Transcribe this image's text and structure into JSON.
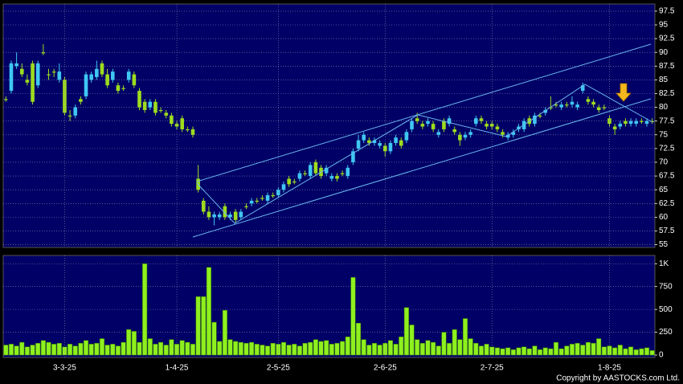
{
  "chart_data": [
    {
      "type": "candlestick",
      "up_color": "#3fc6f2",
      "down_color": "#9ddc1e",
      "ylim": [
        54.5,
        98.8
      ],
      "yticks": [
        55,
        57.5,
        60,
        62.5,
        65,
        67.5,
        70,
        72.5,
        75,
        77.5,
        80,
        82.5,
        85,
        87.5,
        90,
        92.5,
        95,
        97.5
      ],
      "grid": true,
      "open": [
        81.5,
        83,
        87.5,
        87,
        85,
        88,
        84,
        90,
        86,
        86.5,
        85,
        85,
        78.5,
        78.5,
        81.5,
        82,
        85,
        85.5,
        88,
        86,
        85,
        84,
        83.5,
        85,
        86,
        83,
        81,
        80,
        81,
        79.5,
        79,
        78.5,
        77,
        78,
        76,
        76,
        67,
        63,
        61,
        60,
        60,
        62,
        60,
        61,
        60,
        62,
        62.5,
        63,
        63.5,
        63,
        64,
        64,
        65,
        67,
        66.5,
        67,
        68,
        67.5,
        70,
        69,
        68,
        67,
        67.5,
        68,
        67.5,
        70,
        72.5,
        74,
        74,
        73.5,
        73,
        73,
        72,
        73.5,
        74,
        74,
        76,
        78,
        77,
        77,
        77,
        75,
        77.5,
        77,
        76,
        75,
        74.5,
        75,
        77,
        78,
        77,
        77,
        76.5,
        75.5,
        74.5,
        75,
        76,
        76,
        78,
        77,
        78.5,
        79,
        80,
        80.5,
        80,
        80.5,
        80.5,
        80,
        83,
        81.5,
        81,
        80,
        80,
        78,
        76.5,
        76.5,
        77.5,
        77,
        77,
        77.5,
        77,
        77.5
      ],
      "high": [
        82,
        88.5,
        90,
        88,
        86,
        88.5,
        88.5,
        91.5,
        87,
        87,
        88,
        85.5,
        79.5,
        80.5,
        82,
        86.5,
        86.5,
        88.5,
        88.5,
        87,
        87,
        84.5,
        84,
        87,
        86.5,
        83.5,
        81.5,
        81.5,
        81.5,
        80,
        79.5,
        79,
        77.5,
        78.5,
        76.5,
        76.5,
        69.5,
        63.5,
        62,
        61,
        61,
        62.5,
        61,
        61.5,
        61.5,
        62.5,
        63.5,
        63.5,
        64,
        64.5,
        64.5,
        65.5,
        66.5,
        67.5,
        67,
        68.5,
        68.5,
        70,
        70.5,
        69.5,
        69.5,
        68,
        68,
        68.5,
        69.5,
        72.5,
        75,
        75.5,
        74.5,
        74.5,
        74,
        73.5,
        74,
        75,
        74.5,
        76,
        78,
        79,
        77.5,
        78,
        77.5,
        76,
        78,
        78.5,
        76.5,
        75.5,
        75.5,
        76,
        78.5,
        78.5,
        77.5,
        77.5,
        77,
        76,
        75.5,
        76,
        77,
        78,
        78.5,
        79,
        79,
        80,
        82,
        81,
        81,
        81,
        82,
        81,
        84.5,
        82,
        81.5,
        80.5,
        80.5,
        78.5,
        77,
        77.5,
        78,
        78,
        78,
        78,
        78,
        78
      ],
      "low": [
        81,
        82.5,
        87,
        85.5,
        84,
        80.5,
        83.5,
        89.5,
        85,
        85.5,
        84.5,
        78.5,
        77.5,
        78,
        80.5,
        81.5,
        84.5,
        85,
        85.5,
        83.5,
        84.5,
        82.5,
        83,
        84.5,
        83.5,
        79.5,
        79,
        79.5,
        78.5,
        79,
        78,
        76.5,
        76,
        75.5,
        75.5,
        74.5,
        64.5,
        60.5,
        59.5,
        58.5,
        59.5,
        59.5,
        59.5,
        59,
        59.5,
        61.5,
        62,
        62.5,
        63,
        62.5,
        63.5,
        63.5,
        64.5,
        65.5,
        66,
        66.5,
        67.5,
        67,
        67.5,
        67,
        67.5,
        66.5,
        66.5,
        67.5,
        67,
        69.5,
        72,
        73.5,
        73,
        73,
        72.5,
        71,
        71.5,
        73,
        72.5,
        73.5,
        75.5,
        77,
        76,
        76.5,
        75.5,
        74.5,
        75.5,
        76.5,
        75,
        73,
        74,
        74.5,
        76.5,
        77,
        76,
        76,
        75.5,
        74.5,
        74,
        74.5,
        75.5,
        75.5,
        76.5,
        76.5,
        78,
        78.5,
        79.5,
        80,
        79.5,
        80,
        80,
        79.5,
        82.5,
        80.5,
        80,
        79,
        79.5,
        76.5,
        75,
        76,
        76.5,
        76.5,
        76.5,
        77,
        76.5,
        77
      ],
      "close": [
        81.5,
        88,
        88,
        86,
        84.5,
        81,
        88,
        90,
        86,
        86.5,
        86.5,
        79,
        78.5,
        80,
        81,
        86,
        86,
        87,
        86,
        84,
        86.5,
        83,
        83.5,
        86.5,
        84,
        80,
        79.5,
        81,
        79,
        79.5,
        78.5,
        77,
        76.5,
        76,
        76,
        75,
        65,
        61,
        60,
        60.5,
        60.5,
        60,
        60.5,
        59.5,
        61,
        62,
        63,
        63,
        63.5,
        64,
        64,
        65,
        66,
        66,
        66.5,
        68,
        68,
        69.5,
        68,
        67.5,
        69,
        67.5,
        67,
        68,
        69,
        72,
        74,
        75,
        73.5,
        74,
        73.5,
        72,
        73.5,
        74.5,
        73,
        75.5,
        77.5,
        77.5,
        76.5,
        77.5,
        76,
        75.5,
        76,
        78,
        75.5,
        74,
        75,
        75.5,
        78,
        77.5,
        76.5,
        76.5,
        76,
        75,
        75,
        75.5,
        76.5,
        77.5,
        77,
        78.5,
        78.5,
        79.5,
        80,
        80.5,
        80.5,
        80.5,
        81,
        80.5,
        84,
        81,
        80.5,
        79.5,
        80,
        77,
        76,
        77,
        77,
        77.5,
        77.5,
        77.5,
        77.5,
        77.5
      ]
    },
    {
      "type": "bar",
      "color": "#8ef01e",
      "ylim": [
        0,
        1090
      ],
      "yticks": [
        0,
        250,
        500,
        750,
        {
          "value": 1000,
          "label": "1K"
        }
      ],
      "grid": true,
      "categories": [
        null,
        null,
        null,
        null,
        null,
        null,
        null,
        null,
        null,
        null,
        null,
        "3-3-25",
        null,
        null,
        null,
        null,
        null,
        null,
        null,
        null,
        null,
        null,
        null,
        null,
        null,
        null,
        null,
        null,
        null,
        null,
        null,
        null,
        "1-4-25",
        null,
        null,
        null,
        null,
        null,
        null,
        null,
        null,
        null,
        null,
        null,
        null,
        null,
        null,
        null,
        null,
        null,
        null,
        "2-5-25",
        null,
        null,
        null,
        null,
        null,
        null,
        null,
        null,
        null,
        null,
        null,
        null,
        null,
        null,
        null,
        null,
        null,
        null,
        null,
        "2-6-25",
        null,
        null,
        null,
        null,
        null,
        null,
        null,
        null,
        null,
        null,
        null,
        null,
        null,
        null,
        null,
        null,
        null,
        null,
        null,
        "2-7-25",
        null,
        null,
        null,
        null,
        null,
        null,
        null,
        null,
        null,
        null,
        null,
        null,
        null,
        null,
        null,
        null,
        null,
        null,
        null,
        null,
        null,
        "1-8-25",
        null,
        null,
        null,
        null,
        null,
        null,
        null,
        null
      ],
      "values": [
        110,
        120,
        100,
        140,
        90,
        110,
        130,
        160,
        140,
        120,
        130,
        90,
        120,
        100,
        130,
        160,
        120,
        130,
        180,
        110,
        120,
        100,
        140,
        280,
        260,
        140,
        1000,
        180,
        120,
        140,
        110,
        170,
        120,
        160,
        140,
        120,
        640,
        640,
        960,
        360,
        150,
        490,
        170,
        150,
        140,
        130,
        140,
        120,
        110,
        100,
        130,
        120,
        140,
        110,
        120,
        100,
        130,
        140,
        170,
        150,
        160,
        120,
        130,
        150,
        200,
        850,
        350,
        170,
        110,
        130,
        110,
        130,
        160,
        120,
        200,
        520,
        330,
        170,
        130,
        160,
        140,
        100,
        250,
        130,
        280,
        170,
        400,
        180,
        130,
        100,
        120,
        90,
        80,
        70,
        80,
        60,
        80,
        90,
        70,
        100,
        60,
        80,
        70,
        140,
        70,
        100,
        120,
        130,
        110,
        140,
        130,
        180,
        90,
        100,
        80,
        110,
        70,
        90,
        60,
        70,
        80,
        50
      ]
    }
  ],
  "footer": "Copyright by AASTOCKS.com Ltd."
}
